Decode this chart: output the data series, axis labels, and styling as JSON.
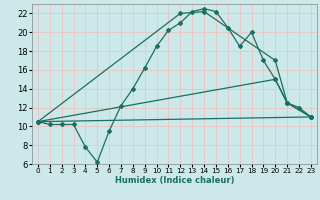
{
  "xlabel": "Humidex (Indice chaleur)",
  "xlim": [
    -0.5,
    23.5
  ],
  "ylim": [
    6,
    23
  ],
  "yticks": [
    6,
    8,
    10,
    12,
    14,
    16,
    18,
    20,
    22
  ],
  "xticks": [
    0,
    1,
    2,
    3,
    4,
    5,
    6,
    7,
    8,
    9,
    10,
    11,
    12,
    13,
    14,
    15,
    16,
    17,
    18,
    19,
    20,
    21,
    22,
    23
  ],
  "bg_color": "#cce8e8",
  "grid_color": "#e8c8c8",
  "line_color": "#1a7060",
  "line1_x": [
    0,
    1,
    2,
    3,
    4,
    5,
    6,
    7,
    8,
    9,
    10,
    11,
    12,
    13,
    14,
    15,
    16,
    17,
    18,
    19,
    20,
    21,
    22,
    23
  ],
  "line1_y": [
    10.5,
    10.2,
    10.2,
    10.2,
    7.8,
    6.2,
    9.5,
    12.2,
    14.0,
    16.2,
    18.5,
    20.2,
    21.0,
    22.2,
    22.5,
    22.2,
    20.5,
    18.5,
    20.0,
    17.0,
    15.0,
    12.5,
    12.0,
    11.0
  ],
  "line2_x": [
    0,
    12,
    14,
    20,
    21,
    23
  ],
  "line2_y": [
    10.5,
    22.0,
    22.2,
    17.0,
    12.5,
    11.0
  ],
  "line3_x": [
    0,
    20,
    21,
    23
  ],
  "line3_y": [
    10.5,
    15.0,
    12.5,
    11.0
  ],
  "line4_x": [
    0,
    23
  ],
  "line4_y": [
    10.5,
    11.0
  ]
}
